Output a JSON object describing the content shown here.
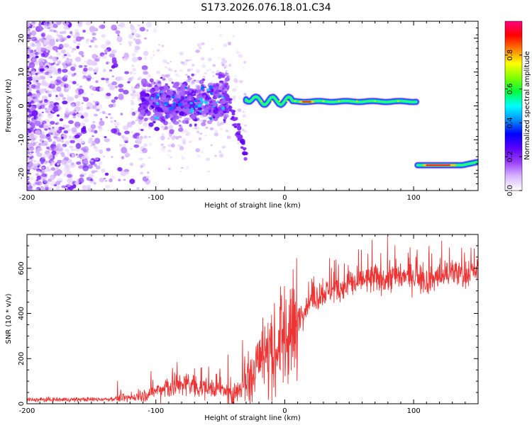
{
  "title": "S173.2026.076.18.01.C34",
  "chart_data": [
    {
      "type": "heatmap",
      "name": "spectrogram",
      "xlabel": "Height of straight line (km)",
      "ylabel": "Frequency (Hz)",
      "xlim": [
        -200,
        150
      ],
      "ylim": [
        -25,
        25
      ],
      "xticks": [
        -200,
        -100,
        0,
        100
      ],
      "yticks": [
        -20,
        -10,
        0,
        10,
        20
      ],
      "xtick_labels": [
        "-200",
        "-100",
        "0",
        "100"
      ],
      "ytick_labels": [
        "-20",
        "-10",
        "0",
        "10",
        "20"
      ],
      "colorbar": {
        "label": "Normalized spectral amplitude",
        "range": [
          0,
          1
        ],
        "ticks": [
          0.0,
          0.2,
          0.4,
          0.6,
          0.8
        ],
        "tick_labels": [
          "0.0",
          "0.2",
          "0.4",
          "0.6",
          "0.8"
        ],
        "colormap": [
          "#ffffff",
          "#d9b8ff",
          "#9b40ff",
          "#5a00ff",
          "#0000ff",
          "#0090ff",
          "#00ffff",
          "#00ff40",
          "#80ff00",
          "#ffff00",
          "#ff8000",
          "#ff0000",
          "#ff0080"
        ]
      },
      "features": [
        {
          "name": "diffuse noise",
          "x_range": [
            -200,
            -110
          ],
          "freq_range": [
            -25,
            25
          ],
          "amplitude": 0.05
        },
        {
          "name": "scattered band",
          "x_range": [
            -110,
            -45
          ],
          "freq_center": 1,
          "freq_width": 8,
          "amplitude": 0.15
        },
        {
          "name": "descending branch",
          "points": [
            [
              -48,
              6
            ],
            [
              -40,
              -3
            ],
            [
              -35,
              -9
            ],
            [
              -30,
              -15
            ]
          ],
          "amplitude": 0.1
        },
        {
          "name": "primary trace",
          "x_range": [
            -30,
            102
          ],
          "freq": 1.5,
          "amplitude": 0.9,
          "peak_x": 17
        },
        {
          "name": "secondary trace",
          "x_range": [
            103,
            150
          ],
          "freq": -17.5,
          "amplitude": 0.9
        }
      ]
    },
    {
      "type": "line",
      "name": "snr",
      "xlabel": "Height of straight line (km)",
      "ylabel": "SNR (10 * v/v)",
      "xlim": [
        -200,
        150
      ],
      "ylim": [
        0,
        750
      ],
      "xticks": [
        -200,
        -100,
        0,
        100
      ],
      "yticks": [
        0,
        200,
        400,
        600
      ],
      "xtick_labels": [
        "-200",
        "-100",
        "0",
        "100"
      ],
      "ytick_labels": [
        "0",
        "200",
        "400",
        "600"
      ],
      "series": [
        {
          "name": "SNR",
          "color": "#ee3333",
          "x": [
            -200,
            -180,
            -160,
            -140,
            -120,
            -110,
            -100,
            -90,
            -80,
            -70,
            -60,
            -50,
            -45,
            -40,
            -35,
            -30,
            -25,
            -20,
            -15,
            -10,
            -5,
            0,
            5,
            10,
            15,
            20,
            30,
            40,
            50,
            60,
            70,
            80,
            90,
            100,
            110,
            120,
            130,
            140,
            150
          ],
          "values": [
            18,
            18,
            19,
            20,
            25,
            35,
            55,
            75,
            85,
            80,
            70,
            65,
            55,
            50,
            60,
            110,
            160,
            190,
            200,
            210,
            240,
            290,
            330,
            380,
            420,
            460,
            490,
            510,
            525,
            540,
            550,
            555,
            560,
            565,
            545,
            560,
            575,
            570,
            585
          ]
        }
      ]
    }
  ]
}
